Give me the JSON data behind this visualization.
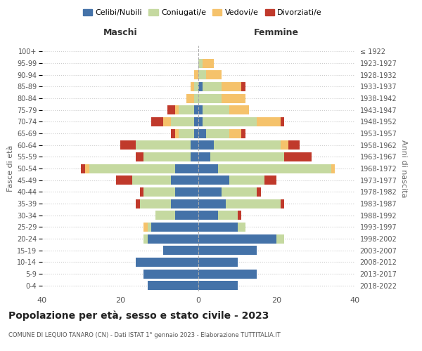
{
  "age_groups": [
    "0-4",
    "5-9",
    "10-14",
    "15-19",
    "20-24",
    "25-29",
    "30-34",
    "35-39",
    "40-44",
    "45-49",
    "50-54",
    "55-59",
    "60-64",
    "65-69",
    "70-74",
    "75-79",
    "80-84",
    "85-89",
    "90-94",
    "95-99",
    "100+"
  ],
  "birth_years": [
    "2018-2022",
    "2013-2017",
    "2008-2012",
    "2003-2007",
    "1998-2002",
    "1993-1997",
    "1988-1992",
    "1983-1987",
    "1978-1982",
    "1973-1977",
    "1968-1972",
    "1963-1967",
    "1958-1962",
    "1953-1957",
    "1948-1952",
    "1943-1947",
    "1938-1942",
    "1933-1937",
    "1928-1932",
    "1923-1927",
    "≤ 1922"
  ],
  "colors": {
    "celibi": "#4472a8",
    "coniugati": "#c5d9a0",
    "vedovi": "#f5c26b",
    "divorziati": "#c0392b"
  },
  "maschi": {
    "celibi": [
      13,
      14,
      16,
      9,
      13,
      12,
      6,
      7,
      6,
      7,
      6,
      2,
      2,
      1,
      1,
      1,
      0,
      0,
      0,
      0,
      0
    ],
    "coniugati": [
      0,
      0,
      0,
      0,
      1,
      1,
      5,
      8,
      8,
      10,
      22,
      12,
      14,
      4,
      6,
      4,
      1,
      1,
      0,
      0,
      0
    ],
    "vedovi": [
      0,
      0,
      0,
      0,
      0,
      1,
      0,
      0,
      0,
      0,
      1,
      0,
      0,
      1,
      2,
      1,
      2,
      1,
      1,
      0,
      0
    ],
    "divorziati": [
      0,
      0,
      0,
      0,
      0,
      0,
      0,
      1,
      1,
      4,
      1,
      2,
      4,
      1,
      3,
      2,
      0,
      0,
      0,
      0,
      0
    ]
  },
  "femmine": {
    "celibi": [
      10,
      15,
      10,
      15,
      20,
      10,
      5,
      7,
      6,
      8,
      5,
      3,
      4,
      2,
      1,
      1,
      0,
      1,
      0,
      0,
      0
    ],
    "coniugati": [
      0,
      0,
      0,
      0,
      2,
      2,
      5,
      14,
      9,
      9,
      29,
      19,
      17,
      6,
      14,
      7,
      6,
      5,
      2,
      1,
      0
    ],
    "vedovi": [
      0,
      0,
      0,
      0,
      0,
      0,
      0,
      0,
      0,
      0,
      1,
      0,
      2,
      3,
      6,
      5,
      6,
      5,
      4,
      3,
      0
    ],
    "divorziati": [
      0,
      0,
      0,
      0,
      0,
      0,
      1,
      1,
      1,
      3,
      0,
      7,
      3,
      1,
      1,
      0,
      0,
      1,
      0,
      0,
      0
    ]
  },
  "xlim": 40,
  "title": "Popolazione per età, sesso e stato civile - 2023",
  "subtitle": "COMUNE DI LEQUIO TANARO (CN) - Dati ISTAT 1° gennaio 2023 - Elaborazione TUTTITALIA.IT",
  "xlabel_left": "Maschi",
  "xlabel_right": "Femmine",
  "ylabel_left": "Fasce di età",
  "ylabel_right": "Anni di nascita",
  "legend_labels": [
    "Celibi/Nubili",
    "Coniugati/e",
    "Vedovi/e",
    "Divorziati/e"
  ]
}
